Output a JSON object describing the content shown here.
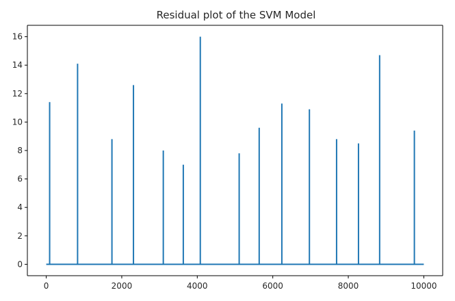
{
  "chart_data": {
    "type": "line",
    "title": "Residual plot of the SVM Model",
    "xlabel": "",
    "ylabel": "",
    "xlim": [
      -500,
      10500
    ],
    "ylim": [
      -0.8,
      16.8
    ],
    "x_ticks": [
      0,
      2000,
      4000,
      6000,
      8000,
      10000
    ],
    "x_tick_labels": [
      "0",
      "2000",
      "4000",
      "6000",
      "8000",
      "10000"
    ],
    "y_ticks": [
      0,
      2,
      4,
      6,
      8,
      10,
      12,
      14,
      16
    ],
    "y_tick_labels": [
      "0",
      "2",
      "4",
      "6",
      "8",
      "10",
      "12",
      "14",
      "16"
    ],
    "grid": false,
    "series": [
      {
        "color": "#1f77b4",
        "baseline_range": [
          0,
          10000
        ],
        "spikes": [
          {
            "x": 90,
            "y": 11.4
          },
          {
            "x": 830,
            "y": 14.1
          },
          {
            "x": 1740,
            "y": 8.8
          },
          {
            "x": 2310,
            "y": 12.6
          },
          {
            "x": 3100,
            "y": 8.0
          },
          {
            "x": 3630,
            "y": 7.0
          },
          {
            "x": 4080,
            "y": 16.0
          },
          {
            "x": 5110,
            "y": 7.8
          },
          {
            "x": 5640,
            "y": 9.6
          },
          {
            "x": 6240,
            "y": 11.3
          },
          {
            "x": 6970,
            "y": 10.9
          },
          {
            "x": 7690,
            "y": 8.8
          },
          {
            "x": 8270,
            "y": 8.5
          },
          {
            "x": 8830,
            "y": 14.7
          },
          {
            "x": 9750,
            "y": 9.4
          }
        ]
      }
    ]
  }
}
